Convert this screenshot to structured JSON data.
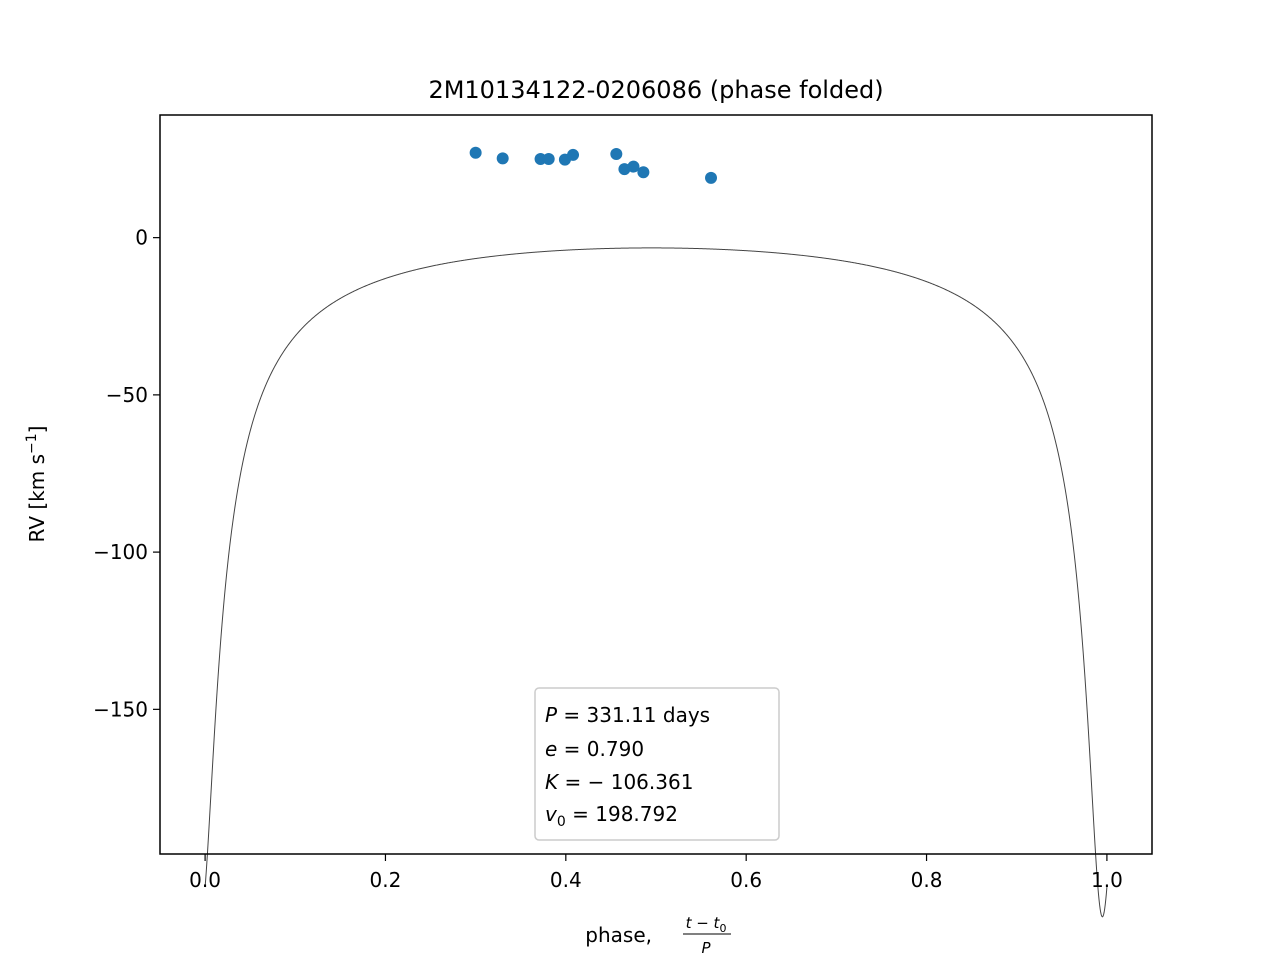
{
  "chart_data": {
    "type": "scatter",
    "title": "2M10134122-0206086 (phase folded)",
    "xlabel_prefix": "phase, ",
    "xlabel_frac_num": "t − t",
    "xlabel_frac_num_sub": "0",
    "xlabel_frac_den": "P",
    "ylabel_main": "RV [km s",
    "ylabel_sup": "−1",
    "ylabel_end": "]",
    "xlim": [
      -0.05,
      1.05
    ],
    "ylim": [
      -196,
      39
    ],
    "xticks": [
      0.0,
      0.2,
      0.4,
      0.6,
      0.8,
      1.0
    ],
    "xtick_labels": [
      "0.0",
      "0.2",
      "0.4",
      "0.6",
      "0.8",
      "1.0"
    ],
    "yticks": [
      0,
      -50,
      -100,
      -150
    ],
    "ytick_labels": [
      "0",
      "−50",
      "−100",
      "−150"
    ],
    "grid": false,
    "series": [
      {
        "type": "scatter",
        "color": "#1f77b4",
        "points": [
          {
            "x": 0.3,
            "y": 27.0
          },
          {
            "x": 0.33,
            "y": 25.2
          },
          {
            "x": 0.372,
            "y": 25.0
          },
          {
            "x": 0.381,
            "y": 25.0
          },
          {
            "x": 0.399,
            "y": 24.8
          },
          {
            "x": 0.408,
            "y": 26.3
          },
          {
            "x": 0.456,
            "y": 26.6
          },
          {
            "x": 0.465,
            "y": 21.8
          },
          {
            "x": 0.475,
            "y": 22.6
          },
          {
            "x": 0.486,
            "y": 20.8
          },
          {
            "x": 0.561,
            "y": 19.0
          }
        ]
      },
      {
        "type": "line",
        "color": "#444444",
        "model": "keplerian",
        "K": -106.361,
        "e": 0.79,
        "v0": 198.792
      }
    ],
    "annotation": {
      "p_var": "P",
      "p_text": " = 331.11 days",
      "e_var": "e",
      "e_text": " = 0.790",
      "k_var": "K",
      "k_text": " = − 106.361",
      "v_var": "v",
      "v_sub": "0",
      "v_text": " = 198.792"
    }
  }
}
